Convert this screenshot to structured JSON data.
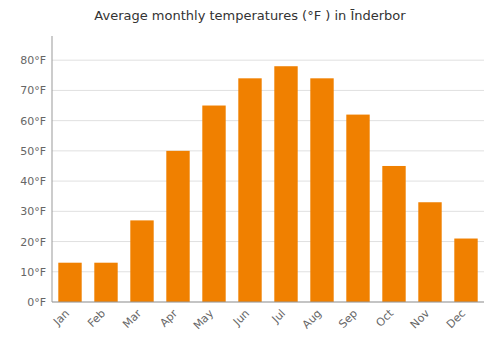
{
  "chart_data": {
    "type": "bar",
    "title": "Average monthly temperatures (°F ) in Īnderbor",
    "categories": [
      "Jan",
      "Feb",
      "Mar",
      "Apr",
      "May",
      "Jun",
      "Jul",
      "Aug",
      "Sep",
      "Oct",
      "Nov",
      "Dec"
    ],
    "values": [
      13,
      13,
      27,
      50,
      65,
      74,
      78,
      74,
      62,
      45,
      33,
      21
    ],
    "color": "#F08000",
    "ylim": [
      0,
      88
    ],
    "yticks": [
      {
        "value": 0,
        "label": "0°F"
      },
      {
        "value": 10,
        "label": "10°F"
      },
      {
        "value": 20,
        "label": "20°F"
      },
      {
        "value": 30,
        "label": "30°F"
      },
      {
        "value": 40,
        "label": "40°F"
      },
      {
        "value": 50,
        "label": "50°F"
      },
      {
        "value": 60,
        "label": "60°F"
      },
      {
        "value": 70,
        "label": "70°F"
      },
      {
        "value": 80,
        "label": "80°F"
      }
    ],
    "grid": true
  }
}
